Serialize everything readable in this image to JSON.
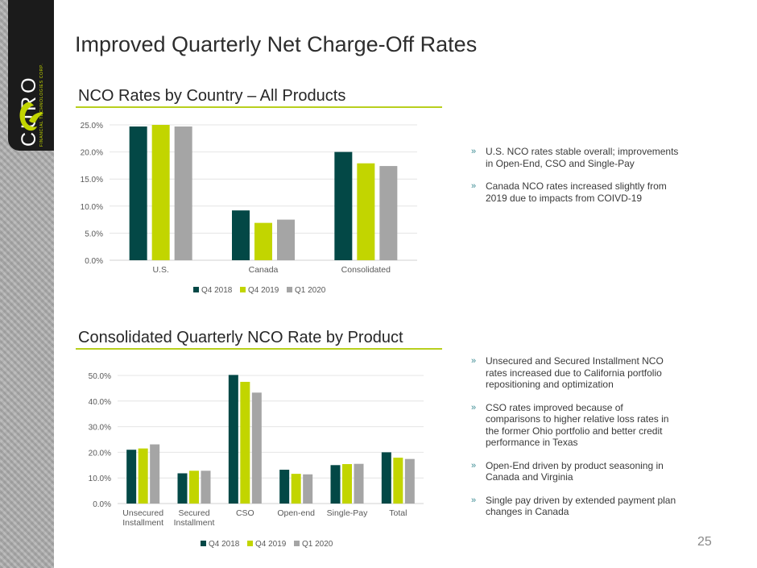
{
  "brand": {
    "name": "CURO",
    "subtitle": "FINANCIAL TECHNOLOGIES CORP."
  },
  "page": {
    "title": "Improved Quarterly Net Charge-Off Rates",
    "number": "25"
  },
  "colors": {
    "q4_2018": "#034846",
    "q4_2019": "#c2d500",
    "q1_2020": "#a5a5a5",
    "accent_rule": "#b8cf1d",
    "bullet_mark": "#3d8c94"
  },
  "section1": {
    "title": "NCO Rates by Country – All Products"
  },
  "section2": {
    "title": "Consolidated Quarterly NCO Rate by Product"
  },
  "chart_data": [
    {
      "type": "bar",
      "title": "NCO Rates by Country – All Products",
      "categories": [
        "U.S.",
        "Canada",
        "Consolidated"
      ],
      "series": [
        {
          "name": "Q4 2018",
          "values": [
            24.7,
            9.2,
            20.0
          ]
        },
        {
          "name": "Q4 2019",
          "values": [
            25.0,
            6.9,
            17.9
          ]
        },
        {
          "name": "Q1 2020",
          "values": [
            24.7,
            7.5,
            17.4
          ]
        }
      ],
      "ylim": [
        0,
        25
      ],
      "yticks": [
        "0.0%",
        "5.0%",
        "10.0%",
        "15.0%",
        "20.0%",
        "25.0%"
      ],
      "xlabel": "",
      "ylabel": "",
      "grid": true,
      "legend": "bottom"
    },
    {
      "type": "bar",
      "title": "Consolidated Quarterly NCO Rate by Product",
      "categories": [
        [
          "Unsecured",
          "Installment"
        ],
        [
          "Secured",
          "Installment"
        ],
        [
          "CSO"
        ],
        [
          "Open-end"
        ],
        [
          "Single-Pay"
        ],
        [
          "Total"
        ]
      ],
      "series": [
        {
          "name": "Q4 2018",
          "values": [
            21.0,
            11.8,
            50.2,
            13.2,
            15.0,
            20.0
          ]
        },
        {
          "name": "Q4 2019",
          "values": [
            21.5,
            12.8,
            47.5,
            11.6,
            15.4,
            17.9
          ]
        },
        {
          "name": "Q1 2020",
          "values": [
            23.1,
            12.8,
            43.3,
            11.4,
            15.5,
            17.4
          ]
        }
      ],
      "ylim": [
        0,
        50
      ],
      "yticks": [
        "0.0%",
        "10.0%",
        "20.0%",
        "30.0%",
        "40.0%",
        "50.0%"
      ],
      "xlabel": "",
      "ylabel": "",
      "grid": true,
      "legend": "bottom"
    }
  ],
  "bullets1": [
    [
      "U.S. NCO rates stable overall; improvements",
      "in Open-End, CSO and Single-Pay"
    ],
    [
      "Canada NCO rates increased slightly from",
      "2019 due to impacts from COIVD-19"
    ]
  ],
  "bullets2": [
    [
      "Unsecured and Secured Installment NCO",
      "rates increased due to California portfolio",
      "repositioning and optimization"
    ],
    [
      "CSO rates improved because of",
      "comparisons to higher relative loss rates in",
      "the former Ohio portfolio and better credit",
      "performance in Texas"
    ],
    [
      "Open-End driven by product seasoning in",
      "Canada and Virginia"
    ],
    [
      "Single pay driven by extended payment plan",
      "changes in Canada"
    ]
  ],
  "bullet_mark": "»"
}
